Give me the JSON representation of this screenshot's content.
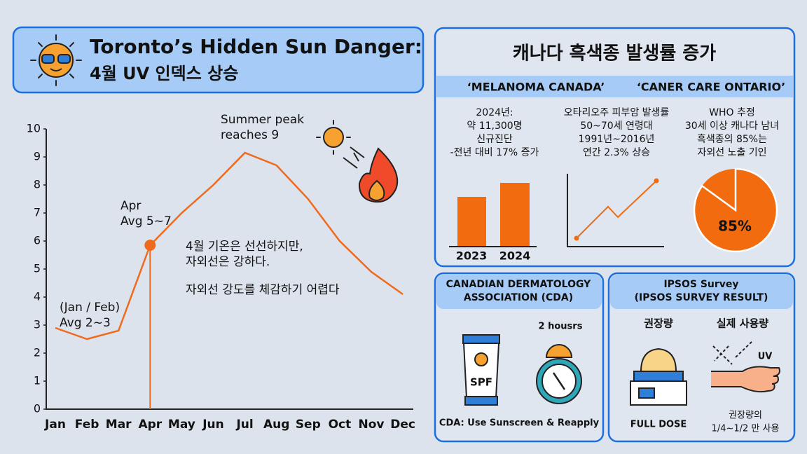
{
  "header": {
    "title": "Toronto’s Hidden Sun Danger:",
    "subtitle": "4월 UV 인덱스 상승"
  },
  "chart_data": {
    "type": "line",
    "categories": [
      "Jan",
      "Feb",
      "Mar",
      "Apr",
      "May",
      "Jun",
      "Jul",
      "Aug",
      "Sep",
      "Oct",
      "Nov",
      "Dec"
    ],
    "values": [
      2.9,
      2.5,
      2.8,
      5.85,
      7.0,
      8.0,
      9.15,
      8.7,
      7.5,
      6.0,
      4.9,
      4.1
    ],
    "color": "#ef6a1c",
    "highlight_index": 3,
    "ylim": [
      0,
      10
    ],
    "yticks": [
      0,
      1,
      2,
      3,
      4,
      5,
      6,
      7,
      8,
      9,
      10
    ],
    "annotations": {
      "peak": [
        "Summer peak",
        "reaches 9"
      ],
      "april": [
        "Apr",
        "Avg 5~7"
      ],
      "note": [
        "4월 기온은 선선하지만,",
        "자외선은 강하다."
      ],
      "note2": "자외선 강도를 체감하기 어렵다",
      "winter": [
        "(Jan / Feb)",
        "Avg 2~3"
      ]
    }
  },
  "melanoma": {
    "title": "캐나다 흑색종 발생률 증가",
    "sources": [
      "‘MELANOMA CANADA’",
      "‘CANER CARE ONTARIO’"
    ],
    "stats": [
      [
        "2024년:",
        "약 11,300명",
        "신규진단",
        "-전년 대비 17% 증가"
      ],
      [
        "오타리오주 피부암 발생률",
        "50~70세 연령대",
        "1991년~2016년",
        "연간 2.3% 상승"
      ],
      [
        "WHO 추정",
        "30세 이상 캐나다 남녀",
        "흑색종의 85%는",
        "자외선 노출 기인"
      ]
    ],
    "bar_years": [
      "2023",
      "2024"
    ],
    "pie": {
      "values": [
        85
      ],
      "value_labels": [
        "85%"
      ],
      "color": "#f26b0f"
    }
  },
  "cda": {
    "title": [
      "CANADIAN DERMATOLOGY",
      "ASSOCIATION (CDA)"
    ],
    "spf": "SPF",
    "timer": "2 housrs",
    "caption": "CDA: Use Sunscreen & Reapply"
  },
  "ipsos": {
    "title": [
      "IPSOS Survey",
      "(IPSOS SURVEY RESULT)"
    ],
    "recommended": "권장량",
    "actual": "실제 사용량",
    "uv": "UV",
    "full_dose": "FULL DOSE",
    "actual_note": [
      "권장량의",
      "1/4~1/2 만 사용"
    ]
  }
}
